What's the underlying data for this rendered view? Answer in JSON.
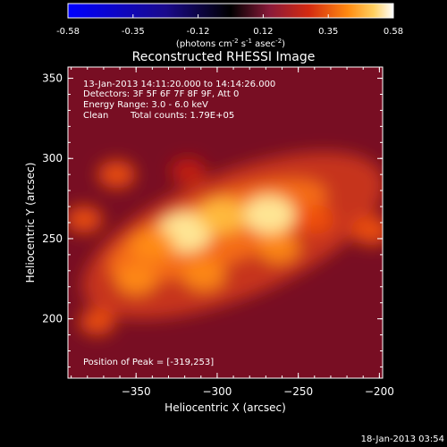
{
  "chart_data": {
    "type": "heatmap",
    "title": "Reconstructed RHESSI Image",
    "xlabel": "Heliocentric X (arcsec)",
    "ylabel": "Heliocentric Y (arcsec)",
    "xlim": [
      -392,
      -198
    ],
    "ylim": [
      163,
      357
    ],
    "xticks": [
      -350,
      -300,
      -250,
      -200
    ],
    "yticks": [
      200,
      250,
      300,
      350
    ],
    "colorbar": {
      "range": [
        -0.58,
        0.58
      ],
      "ticks": [
        "-0.58",
        "-0.35",
        "-0.12",
        "0.12",
        "0.35",
        "0.58"
      ],
      "unit_label": "(photons cm",
      "unit_exp1": "-2",
      "unit_mid": " s",
      "unit_exp2": "-1",
      "unit_end": " asec",
      "unit_exp3": "-2",
      "unit_close": ")"
    },
    "annotations": {
      "time_range": "13-Jan-2013 14:11:20.000 to 14:14:26.000",
      "detectors": "Detectors: 3F 5F 6F 7F 8F 9F, Att 0",
      "energy_range": "Energy Range: 3.0 - 6.0 keV",
      "clean_label": "Clean",
      "total_counts": "Total counts: 1.79E+05",
      "peak": "Position of Peak = [-319,253]"
    },
    "peak": [
      -319,
      253
    ],
    "sources": [
      {
        "x": -320,
        "y": 254,
        "intensity": 0.58
      },
      {
        "x": -268,
        "y": 265,
        "intensity": 0.52
      },
      {
        "x": -297,
        "y": 264,
        "intensity": 0.45
      },
      {
        "x": -340,
        "y": 246,
        "intensity": 0.4
      },
      {
        "x": -350,
        "y": 224,
        "intensity": 0.32
      },
      {
        "x": -308,
        "y": 227,
        "intensity": 0.36
      },
      {
        "x": -262,
        "y": 244,
        "intensity": 0.34
      },
      {
        "x": -240,
        "y": 262,
        "intensity": 0.3
      },
      {
        "x": -205,
        "y": 255,
        "intensity": 0.3
      },
      {
        "x": -362,
        "y": 290,
        "intensity": 0.26
      },
      {
        "x": -318,
        "y": 292,
        "intensity": 0.2
      },
      {
        "x": -382,
        "y": 262,
        "intensity": 0.24
      },
      {
        "x": -374,
        "y": 198,
        "intensity": 0.22
      }
    ]
  },
  "footer": {
    "date": "18-Jan-2013 03:54"
  }
}
